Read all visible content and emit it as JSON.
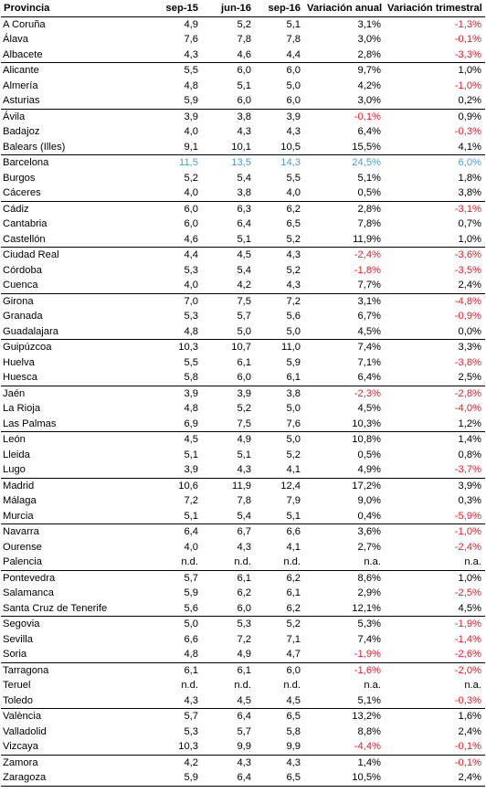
{
  "headers": [
    "Provincia",
    "sep-15",
    "jun-16",
    "sep-16",
    "Variación anual",
    "Variación trimestral"
  ],
  "colors": {
    "negative": "#e8202a",
    "highlight": "#4b9bd6"
  },
  "rows": [
    {
      "p": "A Coruña",
      "a": "4,9",
      "b": "5,2",
      "c": "5,1",
      "d": "3,1%",
      "e": "-1,3%"
    },
    {
      "p": "Álava",
      "a": "7,6",
      "b": "7,8",
      "c": "7,8",
      "d": "3,0%",
      "e": "-0,1%"
    },
    {
      "p": "Albacete",
      "a": "4,3",
      "b": "4,6",
      "c": "4,4",
      "d": "2,8%",
      "e": "-3,3%",
      "end": true
    },
    {
      "p": "Alicante",
      "a": "5,5",
      "b": "6,0",
      "c": "6,0",
      "d": "9,7%",
      "e": "1,0%"
    },
    {
      "p": "Almería",
      "a": "4,8",
      "b": "5,1",
      "c": "5,0",
      "d": "4,2%",
      "e": "-1,0%"
    },
    {
      "p": "Asturias",
      "a": "5,9",
      "b": "6,0",
      "c": "6,0",
      "d": "3,0%",
      "e": "0,2%",
      "end": true
    },
    {
      "p": "Ávila",
      "a": "3,9",
      "b": "3,8",
      "c": "3,9",
      "d": "-0,1%",
      "e": "0,9%"
    },
    {
      "p": "Badajoz",
      "a": "4,0",
      "b": "4,3",
      "c": "4,3",
      "d": "6,4%",
      "e": "-0,3%"
    },
    {
      "p": "Balears (Illes)",
      "a": "9,1",
      "b": "10,1",
      "c": "10,5",
      "d": "15,5%",
      "e": "4,1%",
      "end": true
    },
    {
      "p": "Barcelona",
      "a": "11,5",
      "b": "13,5",
      "c": "14,3",
      "d": "24,5%",
      "e": "6,0%",
      "hl": true
    },
    {
      "p": "Burgos",
      "a": "5,2",
      "b": "5,4",
      "c": "5,5",
      "d": "5,1%",
      "e": "1,8%"
    },
    {
      "p": "Cáceres",
      "a": "4,0",
      "b": "3,8",
      "c": "4,0",
      "d": "0,5%",
      "e": "3,8%",
      "end": true
    },
    {
      "p": "Cádiz",
      "a": "6,0",
      "b": "6,3",
      "c": "6,2",
      "d": "2,8%",
      "e": "-3,1%"
    },
    {
      "p": "Cantabria",
      "a": "6,0",
      "b": "6,4",
      "c": "6,5",
      "d": "7,8%",
      "e": "0,7%"
    },
    {
      "p": "Castellón",
      "a": "4,6",
      "b": "5,1",
      "c": "5,2",
      "d": "11,9%",
      "e": "1,0%",
      "end": true
    },
    {
      "p": "Ciudad Real",
      "a": "4,4",
      "b": "4,5",
      "c": "4,3",
      "d": "-2,4%",
      "e": "-3,6%"
    },
    {
      "p": "Córdoba",
      "a": "5,3",
      "b": "5,4",
      "c": "5,2",
      "d": "-1,8%",
      "e": "-3,5%"
    },
    {
      "p": "Cuenca",
      "a": "4,0",
      "b": "4,2",
      "c": "4,3",
      "d": "7,7%",
      "e": "2,4%",
      "end": true
    },
    {
      "p": "Girona",
      "a": "7,0",
      "b": "7,5",
      "c": "7,2",
      "d": "3,1%",
      "e": "-4,8%"
    },
    {
      "p": "Granada",
      "a": "5,3",
      "b": "5,7",
      "c": "5,6",
      "d": "6,7%",
      "e": "-0,9%"
    },
    {
      "p": "Guadalajara",
      "a": "4,8",
      "b": "5,0",
      "c": "5,0",
      "d": "4,5%",
      "e": "0,0%",
      "end": true
    },
    {
      "p": "Guipúzcoa",
      "a": "10,3",
      "b": "10,7",
      "c": "11,0",
      "d": "7,4%",
      "e": "3,3%"
    },
    {
      "p": "Huelva",
      "a": "5,5",
      "b": "6,1",
      "c": "5,9",
      "d": "7,1%",
      "e": "-3,8%"
    },
    {
      "p": "Huesca",
      "a": "5,8",
      "b": "6,0",
      "c": "6,1",
      "d": "6,4%",
      "e": "2,5%",
      "end": true
    },
    {
      "p": "Jaén",
      "a": "3,9",
      "b": "3,9",
      "c": "3,8",
      "d": "-2,3%",
      "e": "-2,8%"
    },
    {
      "p": "La Rioja",
      "a": "4,8",
      "b": "5,2",
      "c": "5,0",
      "d": "4,5%",
      "e": "-4,0%"
    },
    {
      "p": "Las Palmas",
      "a": "6,9",
      "b": "7,5",
      "c": "7,6",
      "d": "10,3%",
      "e": "1,2%",
      "end": true
    },
    {
      "p": "León",
      "a": "4,5",
      "b": "4,9",
      "c": "5,0",
      "d": "10,8%",
      "e": "1,4%"
    },
    {
      "p": "Lleida",
      "a": "5,1",
      "b": "5,1",
      "c": "5,2",
      "d": "0,5%",
      "e": "0,8%"
    },
    {
      "p": "Lugo",
      "a": "3,9",
      "b": "4,3",
      "c": "4,1",
      "d": "4,9%",
      "e": "-3,7%",
      "end": true
    },
    {
      "p": "Madrid",
      "a": "10,6",
      "b": "11,9",
      "c": "12,4",
      "d": "17,2%",
      "e": "3,9%"
    },
    {
      "p": "Málaga",
      "a": "7,2",
      "b": "7,8",
      "c": "7,9",
      "d": "9,0%",
      "e": "0,3%"
    },
    {
      "p": "Murcia",
      "a": "5,1",
      "b": "5,4",
      "c": "5,1",
      "d": "0,4%",
      "e": "-5,9%",
      "end": true
    },
    {
      "p": "Navarra",
      "a": "6,4",
      "b": "6,7",
      "c": "6,6",
      "d": "3,6%",
      "e": "-1,0%"
    },
    {
      "p": "Ourense",
      "a": "4,0",
      "b": "4,3",
      "c": "4,1",
      "d": "2,7%",
      "e": "-2,4%"
    },
    {
      "p": "Palencia",
      "a": "n.d.",
      "b": "n.d.",
      "c": "n.d.",
      "d": "n.a.",
      "e": "n.a.",
      "end": true
    },
    {
      "p": "Pontevedra",
      "a": "5,7",
      "b": "6,1",
      "c": "6,2",
      "d": "8,6%",
      "e": "1,0%"
    },
    {
      "p": "Salamanca",
      "a": "5,9",
      "b": "6,2",
      "c": "6,1",
      "d": "2,9%",
      "e": "-2,5%"
    },
    {
      "p": "Santa Cruz de Tenerife",
      "a": "5,6",
      "b": "6,0",
      "c": "6,2",
      "d": "12,1%",
      "e": "4,5%",
      "end": true
    },
    {
      "p": "Segovia",
      "a": "5,0",
      "b": "5,3",
      "c": "5,2",
      "d": "5,3%",
      "e": "-1,9%"
    },
    {
      "p": "Sevilla",
      "a": "6,6",
      "b": "7,2",
      "c": "7,1",
      "d": "7,4%",
      "e": "-1,4%"
    },
    {
      "p": "Soria",
      "a": "4,8",
      "b": "4,9",
      "c": "4,7",
      "d": "-1,9%",
      "e": "-2,6%",
      "end": true
    },
    {
      "p": "Tarragona",
      "a": "6,1",
      "b": "6,1",
      "c": "6,0",
      "d": "-1,6%",
      "e": "-2,0%"
    },
    {
      "p": "Teruel",
      "a": "n.d.",
      "b": "n.d.",
      "c": "n.d.",
      "d": "n.a.",
      "e": "n.a."
    },
    {
      "p": "Toledo",
      "a": "4,3",
      "b": "4,5",
      "c": "4,5",
      "d": "5,1%",
      "e": "-0,3%",
      "end": true
    },
    {
      "p": "València",
      "a": "5,7",
      "b": "6,4",
      "c": "6,5",
      "d": "13,2%",
      "e": "1,6%"
    },
    {
      "p": "Valladolid",
      "a": "5,3",
      "b": "5,7",
      "c": "5,8",
      "d": "8,8%",
      "e": "2,4%"
    },
    {
      "p": "Vizcaya",
      "a": "10,3",
      "b": "9,9",
      "c": "9,9",
      "d": "-4,4%",
      "e": "-0,1%",
      "end": true
    },
    {
      "p": "Zamora",
      "a": "4,2",
      "b": "4,3",
      "c": "4,3",
      "d": "1,4%",
      "e": "-0,1%"
    },
    {
      "p": "Zaragoza",
      "a": "5,9",
      "b": "6,4",
      "c": "6,5",
      "d": "10,5%",
      "e": "2,4%",
      "last": true
    }
  ]
}
